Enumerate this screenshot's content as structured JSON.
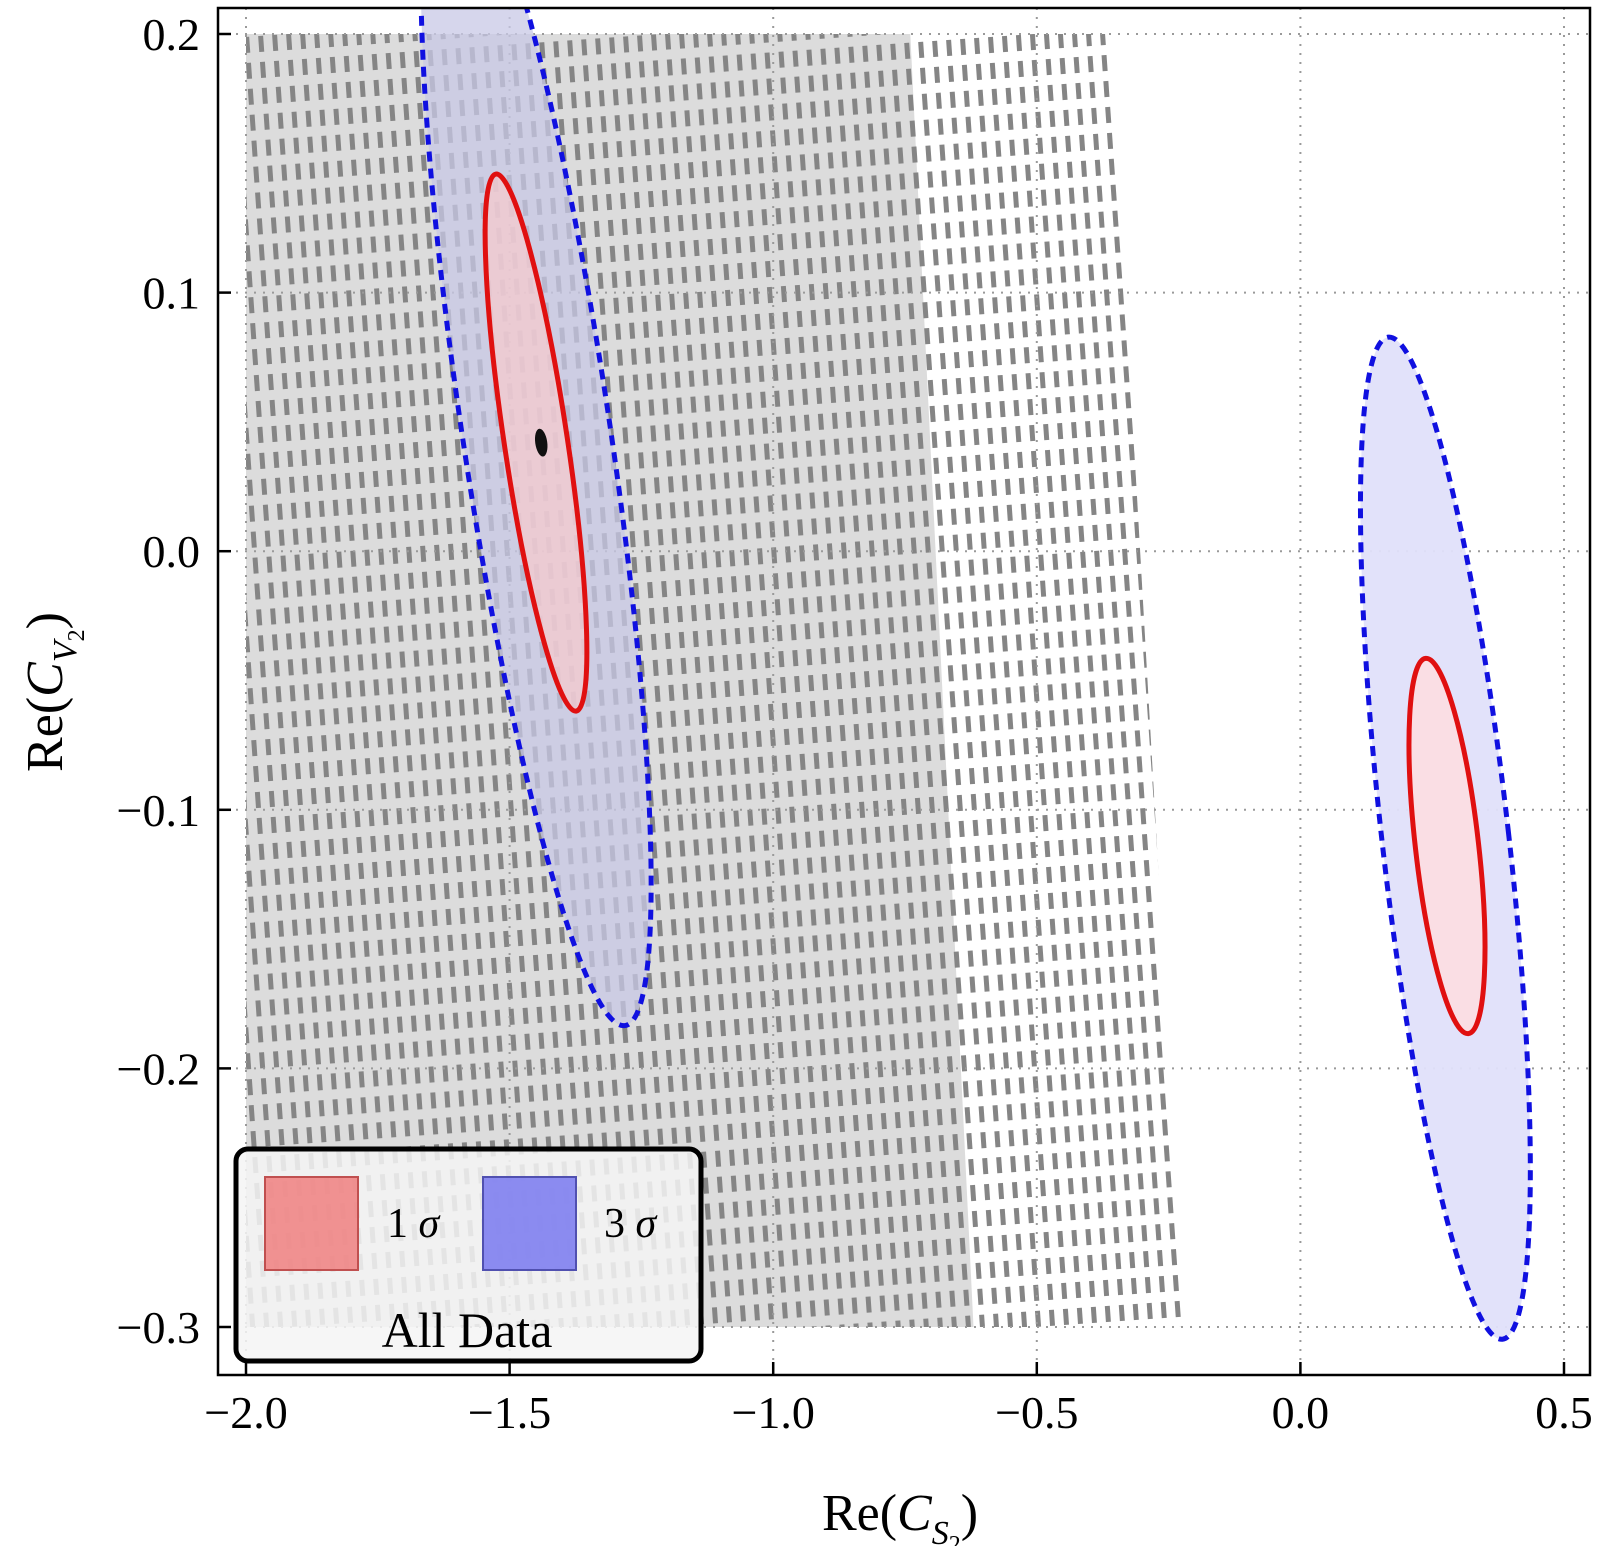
{
  "chart_data": {
    "type": "contour",
    "xlabel": "Re(C_S2)",
    "ylabel": "Re(C_V2)",
    "xlim": [
      -2.05,
      0.5
    ],
    "ylim": [
      -0.31,
      0.21
    ],
    "xticks": [
      -2.0,
      -1.5,
      -1.0,
      -0.5,
      0.0,
      0.5
    ],
    "xtick_labels": [
      "−2.0",
      "−1.5",
      "−1.0",
      "−0.5",
      "0.0",
      "0.5"
    ],
    "yticks": [
      0.2,
      0.1,
      0.0,
      -0.1,
      -0.2,
      -0.3
    ],
    "ytick_labels": [
      "0.2",
      "0.1",
      "0.0",
      "−0.1",
      "−0.2",
      "−0.3"
    ],
    "grid": true,
    "legend": {
      "placement": "bottom-left",
      "entries": [
        {
          "label": "1",
          "symbol": "σ",
          "color": "#f08080"
        },
        {
          "label": "3",
          "symbol": "σ",
          "color": "#8080f0"
        }
      ],
      "title": "All Data"
    },
    "excluded_regions": [
      {
        "style": "solid-gray",
        "color": "#dcdcdc",
        "polygon": [
          [
            -2.0,
            0.2
          ],
          [
            -0.74,
            0.2
          ],
          [
            -0.62,
            -0.3
          ],
          [
            -2.0,
            -0.3
          ]
        ]
      },
      {
        "style": "dashed-gray",
        "color": "#808080",
        "polygon": [
          [
            -2.0,
            0.2
          ],
          [
            -0.36,
            0.2
          ],
          [
            -0.22,
            -0.3
          ],
          [
            -2.0,
            -0.3
          ]
        ]
      }
    ],
    "series": [
      {
        "name": "1 σ",
        "region": "left",
        "center": [
          -1.45,
          0.042
        ],
        "semi_axes": [
          0.12,
          0.105
        ],
        "tilt_deg": 8.5,
        "stroke": "#e01010",
        "fill": "#f4c9cd",
        "line": "solid"
      },
      {
        "name": "3 σ",
        "region": "left",
        "center": [
          -1.45,
          0.047
        ],
        "semi_axes": [
          0.28,
          0.233
        ],
        "tilt_deg": 8.5,
        "stroke": "#1010e0",
        "fill": "#c8c8e6",
        "line": "dashed"
      },
      {
        "name": "1 σ",
        "region": "right",
        "center": [
          0.278,
          -0.114
        ],
        "semi_axes": [
          0.12,
          0.073
        ],
        "tilt_deg": 6.5,
        "stroke": "#e01010",
        "fill": "#fbdde3",
        "line": "solid"
      },
      {
        "name": "3 σ",
        "region": "right",
        "center": [
          0.275,
          -0.111
        ],
        "semi_axes": [
          0.24,
          0.195
        ],
        "tilt_deg": 6.5,
        "stroke": "#1010e0",
        "fill": "#e0e0fa",
        "line": "dashed"
      }
    ],
    "best_fit_point": {
      "x": -1.44,
      "y": 0.042
    }
  }
}
